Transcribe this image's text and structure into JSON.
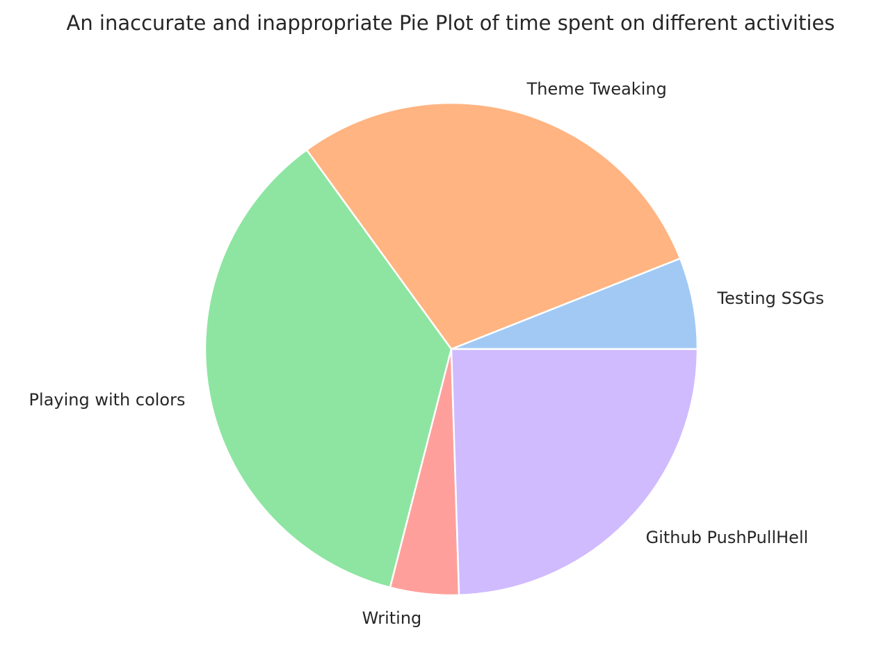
{
  "chart_data": {
    "type": "pie",
    "title": "An inaccurate and inappropriate Pie Plot of time spent on different activities",
    "start_angle_deg": 0,
    "direction": "counterclockwise",
    "slices": [
      {
        "label": "Testing SSGs",
        "value": 6,
        "color": "#a1c9f4"
      },
      {
        "label": "Theme Tweaking",
        "value": 29,
        "color": "#ffb482"
      },
      {
        "label": "Playing with colors",
        "value": 36,
        "color": "#8de5a1"
      },
      {
        "label": "Writing",
        "value": 4.5,
        "color": "#ff9f9b"
      },
      {
        "label": "Github PushPullHell",
        "value": 24.5,
        "color": "#d0bbff"
      }
    ]
  }
}
